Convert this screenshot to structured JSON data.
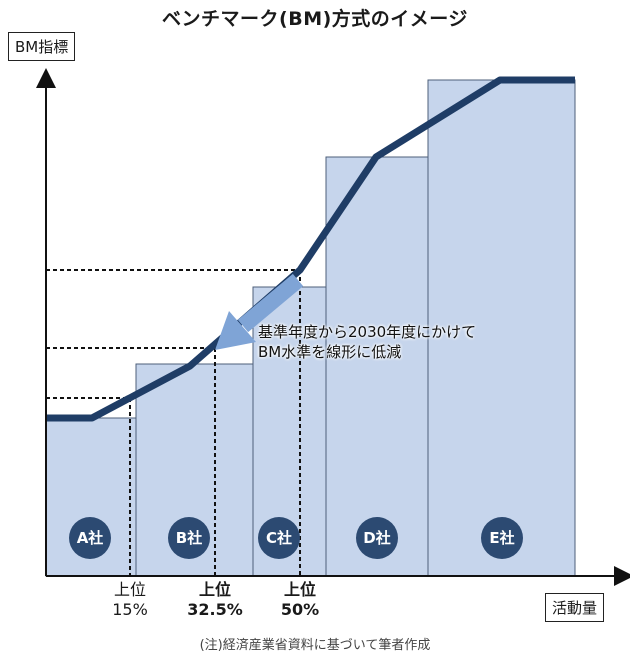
{
  "title": "ベンチマーク(BM)方式のイメージ",
  "y_axis_label": "BM指標",
  "x_axis_label": "活動量",
  "note": "(注)経済産業省資料に基づいて筆者作成",
  "callout": {
    "line1": "基準年度から2030年度にかけて",
    "line2": "BM水準を線形に低減"
  },
  "companies": [
    {
      "label": "A社",
      "bm_level": 1.0
    },
    {
      "label": "B社",
      "bm_level": 1.27
    },
    {
      "label": "C社",
      "bm_level": 1.62
    },
    {
      "label": "D社",
      "bm_level": 2.6
    },
    {
      "label": "E社",
      "bm_level": 3.0
    }
  ],
  "percentile_marks": [
    {
      "line1": "上位",
      "line2": "15%",
      "bold": false
    },
    {
      "line1": "上位",
      "line2": "32.5%",
      "bold": true
    },
    {
      "line1": "上位",
      "line2": "50%",
      "bold": true
    }
  ],
  "colors": {
    "bar_fill": "#c6d5ec",
    "curve": "#1f3d66",
    "badge": "#2c4a72",
    "arrow": "#7fa4d6"
  }
}
